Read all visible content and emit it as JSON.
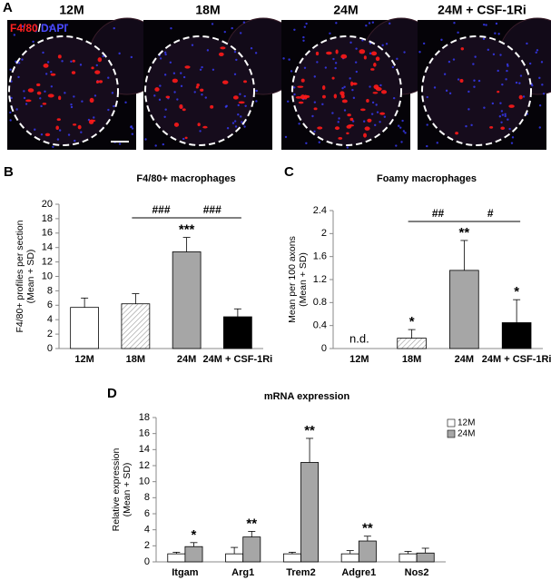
{
  "figure_a": {
    "panel": "A",
    "stain": [
      "F4/80",
      "/",
      "DAPI"
    ],
    "images": [
      {
        "title": "12M"
      },
      {
        "title": "18M"
      },
      {
        "title": "24M"
      },
      {
        "title": "24M + CSF-1Ri"
      }
    ]
  },
  "chart_data": [
    {
      "type": "bar",
      "panel": "B",
      "title": "F4/80+ macrophages",
      "ylabel": [
        "F4/80+ profiles per section",
        "(Mean + SD)"
      ],
      "categories": [
        "12M",
        "18M",
        "24M",
        "24M + CSF-1Ri"
      ],
      "values": [
        5.7,
        6.2,
        13.4,
        4.4
      ],
      "errors": [
        1.3,
        1.4,
        2.0,
        1.1
      ],
      "value_annotations": [
        null,
        null,
        "***",
        null
      ],
      "colors": [
        "#ffffff",
        "#ffffff",
        "#a6a6a6",
        "#000000"
      ],
      "hatch": [
        false,
        true,
        false,
        false
      ],
      "brackets": [
        {
          "label": "###",
          "between": [
            "18M",
            "24M"
          ]
        },
        {
          "label": "###",
          "between": [
            "24M",
            "24M + CSF-1Ri"
          ]
        }
      ],
      "ylim": [
        0,
        20
      ],
      "yticks": [
        0,
        2,
        4,
        6,
        8,
        10,
        12,
        14,
        16,
        18,
        20
      ]
    },
    {
      "type": "bar",
      "panel": "C",
      "title": "Foamy macrophages",
      "ylabel": [
        "Mean per 100 axons",
        "(Mean + SD)"
      ],
      "categories": [
        "12M",
        "18M",
        "24M",
        "24M + CSF-1Ri"
      ],
      "values": [
        null,
        0.18,
        1.36,
        0.45
      ],
      "errors": [
        null,
        0.15,
        0.52,
        0.4
      ],
      "value_annotations": [
        "n.d.",
        "*",
        "**",
        "*"
      ],
      "colors": [
        "#ffffff",
        "#ffffff",
        "#a6a6a6",
        "#000000"
      ],
      "hatch": [
        false,
        true,
        false,
        false
      ],
      "brackets": [
        {
          "label": "##",
          "between": [
            "18M",
            "24M"
          ]
        },
        {
          "label": "#",
          "between": [
            "24M",
            "24M + CSF-1Ri"
          ]
        }
      ],
      "ylim": [
        0,
        2.4
      ],
      "yticks": [
        0,
        0.4,
        0.8,
        1.2,
        1.6,
        2,
        2.4
      ]
    },
    {
      "type": "bar",
      "panel": "D",
      "title": "mRNA expression",
      "ylabel": [
        "Relative expression",
        "(Mean + SD)"
      ],
      "categories": [
        "Itgam",
        "Arg1",
        "Trem2",
        "Adgre1",
        "Nos2"
      ],
      "series": [
        {
          "name": "12M",
          "color": "#ffffff",
          "values": [
            1,
            1,
            1,
            1,
            1
          ],
          "errors": [
            0.2,
            0.8,
            0.2,
            0.4,
            0.3
          ],
          "value_annotations": [
            null,
            null,
            null,
            null,
            null
          ]
        },
        {
          "name": "24M",
          "color": "#a6a6a6",
          "values": [
            1.9,
            3.1,
            12.4,
            2.6,
            1.1
          ],
          "errors": [
            0.5,
            0.7,
            3.0,
            0.6,
            0.6
          ],
          "value_annotations": [
            "*",
            "**",
            "**",
            "**",
            null
          ]
        }
      ],
      "legend": "upper right",
      "ylim": [
        0,
        18
      ],
      "yticks": [
        0,
        2,
        4,
        6,
        8,
        10,
        12,
        14,
        16,
        18
      ]
    }
  ]
}
